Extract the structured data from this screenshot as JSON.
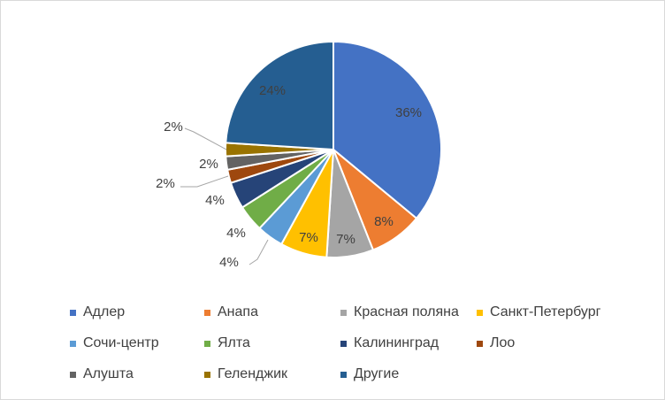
{
  "chart_data": {
    "type": "pie",
    "title": "",
    "categories": [
      "Адлер",
      "Анапа",
      "Красная поляна",
      "Санкт-Петербург",
      "Сочи-центр",
      "Ялта",
      "Калининград",
      "Лоо",
      "Алушта",
      "Геленджик",
      "Другие"
    ],
    "values": [
      36,
      8,
      7,
      7,
      4,
      4,
      4,
      2,
      2,
      2,
      24
    ],
    "data_labels": [
      "36%",
      "8%",
      "7%",
      "7%",
      "4%",
      "4%",
      "4%",
      "2%",
      "2%",
      "2%",
      "24%"
    ],
    "colors": [
      "#4472C4",
      "#ED7D31",
      "#A5A5A5",
      "#FFC000",
      "#5B9BD5",
      "#70AD47",
      "#264478",
      "#9E480E",
      "#636363",
      "#997300",
      "#255E91"
    ],
    "start": "12 o'clock, clockwise",
    "legend_position": "bottom"
  }
}
